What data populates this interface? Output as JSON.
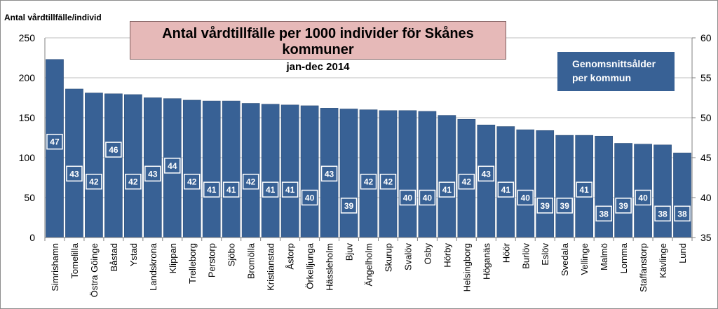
{
  "chart_data": {
    "type": "bar",
    "title": "Antal vårdtillfälle per 1000 individer för Skånes kommuner",
    "subtitle": "jan-dec 2014",
    "ylabel": "Antal vårdtillfälle/individ",
    "ylim": [
      0,
      250
    ],
    "yticks": [
      0,
      50,
      100,
      150,
      200,
      250
    ],
    "y2lim": [
      35,
      60
    ],
    "y2ticks": [
      35,
      40,
      45,
      50,
      55,
      60
    ],
    "legend": "Genomsnittsålder per kommun",
    "legend_lines": [
      "Genomsnittsålder",
      "per kommun"
    ],
    "bar_color": "#386195",
    "categories": [
      "Simrishamn",
      "Tomelilla",
      "Östra Göinge",
      "Båstad",
      "Ystad",
      "Landskrona",
      "Klippan",
      "Trelleborg",
      "Perstorp",
      "Sjöbo",
      "Bromölla",
      "Kristianstad",
      "Åstorp",
      "Örkelljunga",
      "Hässleholm",
      "Bjuv",
      "Ängelholm",
      "Skurup",
      "Svalöv",
      "Osby",
      "Hörby",
      "Helsingborg",
      "Höganäs",
      "Höör",
      "Burlöv",
      "Eslöv",
      "Svedala",
      "Vellinge",
      "Malmö",
      "Lomma",
      "Staffanstorp",
      "Kävlinge",
      "Lund"
    ],
    "values": [
      223,
      186,
      181,
      180,
      179,
      175,
      174,
      172,
      171,
      171,
      168,
      167,
      166,
      165,
      162,
      161,
      160,
      159,
      159,
      158,
      153,
      148,
      141,
      139,
      135,
      134,
      128,
      128,
      127,
      118,
      117,
      116,
      106
    ],
    "ages": [
      "47",
      "43",
      "42",
      "46",
      "42",
      "43",
      "44",
      "42",
      "41",
      "41",
      "42",
      "41",
      "41",
      "40",
      "43",
      "39",
      "42",
      "42",
      "40",
      "40",
      "41",
      "42",
      "43",
      "41",
      "40",
      "39",
      "39",
      "41",
      "38",
      "39",
      "40",
      "38",
      "38"
    ]
  }
}
